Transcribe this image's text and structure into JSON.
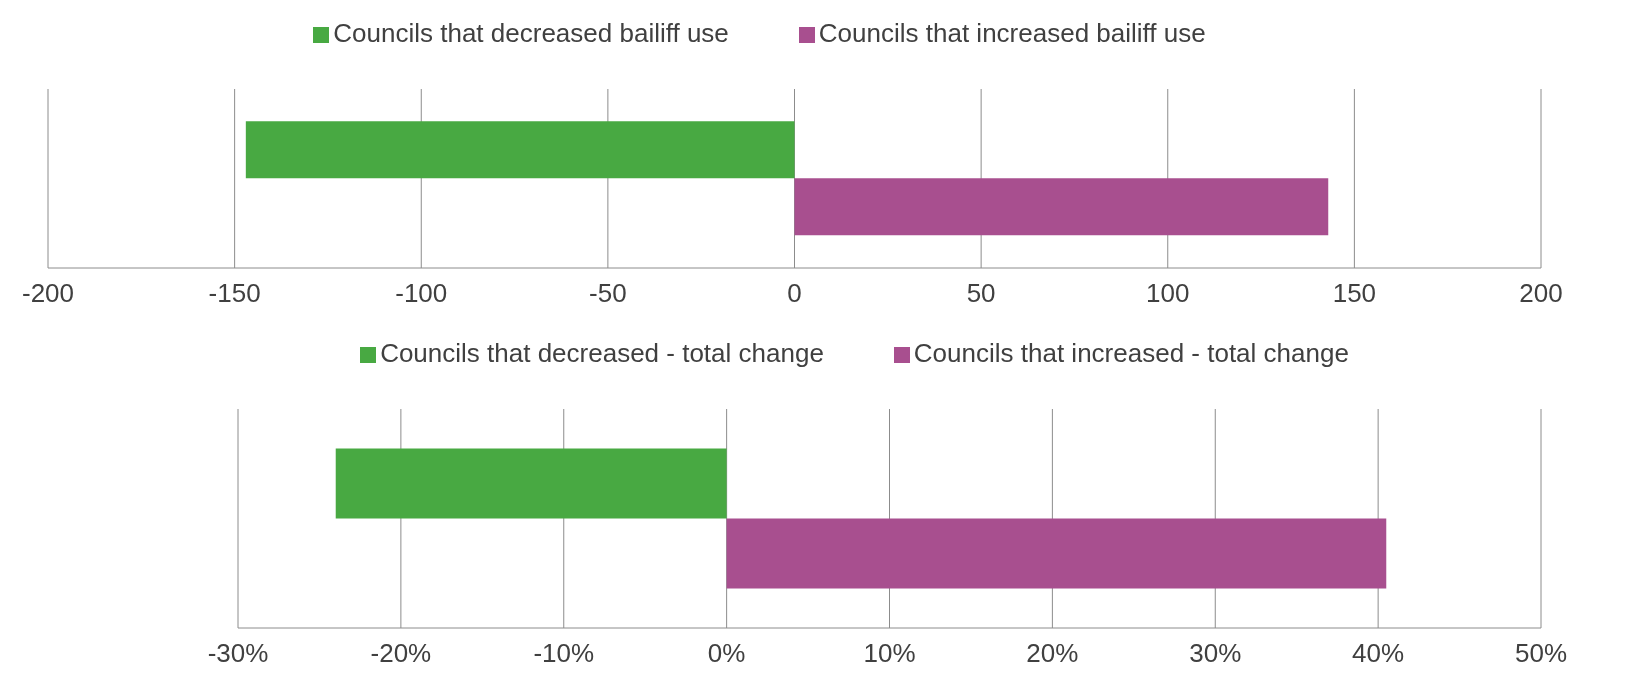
{
  "chart_data": [
    {
      "type": "bar",
      "orientation": "horizontal",
      "categories": [
        null
      ],
      "series": [
        {
          "name": "Councils that decreased bailiff use",
          "color": "#48a942",
          "values": [
            -147
          ]
        },
        {
          "name": "Councils that increased bailiff use",
          "color": "#a84f8f",
          "values": [
            143
          ]
        }
      ],
      "xlim": [
        -200,
        200
      ],
      "xticks": [
        -200,
        -150,
        -100,
        -50,
        0,
        50,
        100,
        150,
        200
      ],
      "grid": "x",
      "legend": "top"
    },
    {
      "type": "bar",
      "orientation": "horizontal",
      "categories": [
        null
      ],
      "series": [
        {
          "name": "Councils that decreased - total change",
          "color": "#48a942",
          "values": [
            -24
          ]
        },
        {
          "name": "Councils that increased - total change",
          "color": "#a84f8f",
          "values": [
            40.5
          ]
        }
      ],
      "xlim": [
        -30,
        50
      ],
      "xticks": [
        {
          "value": -30,
          "label": "-30%"
        },
        {
          "value": -20,
          "label": "-20%"
        },
        {
          "value": -10,
          "label": "-10%"
        },
        {
          "value": 0,
          "label": "0%"
        },
        {
          "value": 10,
          "label": "10%"
        },
        {
          "value": 20,
          "label": "20%"
        },
        {
          "value": 30,
          "label": "30%"
        },
        {
          "value": 40,
          "label": "40%"
        },
        {
          "value": 50,
          "label": "50%"
        }
      ],
      "grid": "x",
      "legend": "top"
    }
  ]
}
